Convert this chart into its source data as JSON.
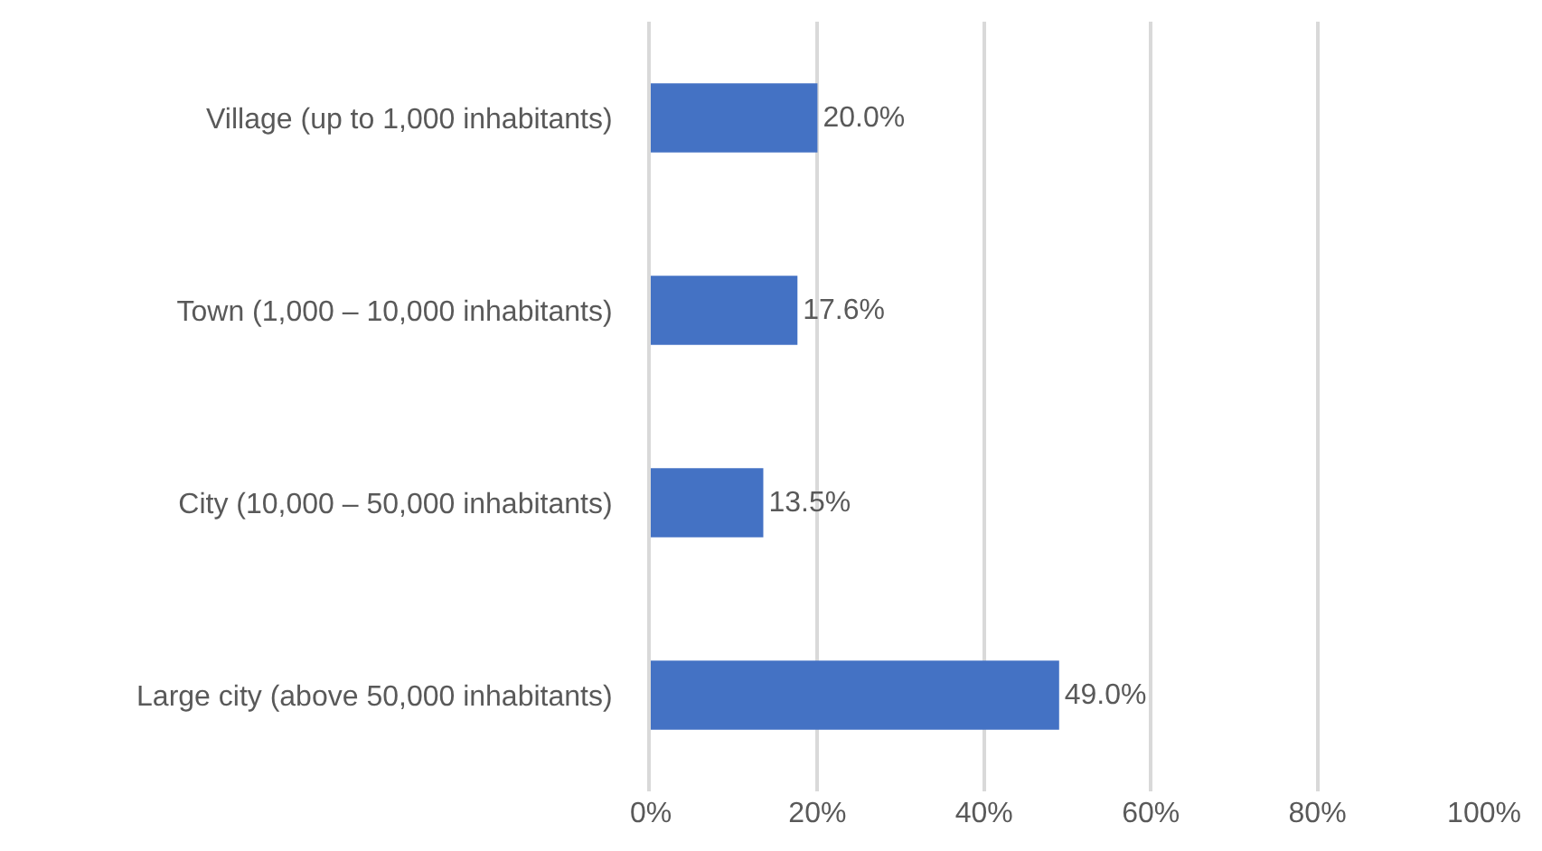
{
  "chart_data": {
    "type": "bar",
    "orientation": "horizontal",
    "categories": [
      "Village (up to 1,000 inhabitants)",
      "Town (1,000 – 10,000 inhabitants)",
      "City (10,000 – 50,000 inhabitants)",
      "Large city (above 50,000 inhabitants)"
    ],
    "values": [
      20.0,
      17.6,
      13.5,
      49.0
    ],
    "value_labels": [
      "20.0%",
      "17.6%",
      "13.5%",
      "49.0%"
    ],
    "color": "#4472c4",
    "xlim": [
      0,
      100
    ],
    "xticks": [
      {
        "value": 0,
        "label": "0%"
      },
      {
        "value": 20,
        "label": "20%"
      },
      {
        "value": 40,
        "label": "40%"
      },
      {
        "value": 60,
        "label": "60%"
      },
      {
        "value": 80,
        "label": "80%"
      },
      {
        "value": 100,
        "label": "100%"
      }
    ],
    "grid": "x"
  }
}
